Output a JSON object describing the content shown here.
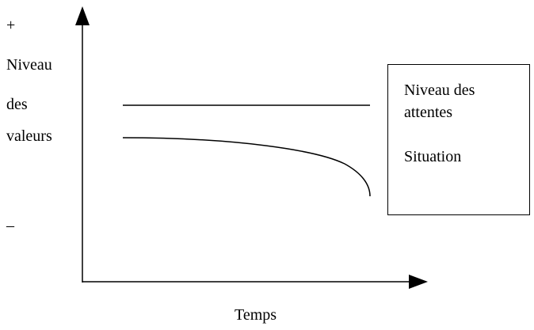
{
  "diagram": {
    "y_axis": {
      "top_marker": "+",
      "label_lines": [
        "Niveau",
        "des",
        "valeurs"
      ],
      "bottom_marker": "–"
    },
    "x_axis": {
      "label": "Temps"
    },
    "legend": {
      "line1": "Niveau des",
      "line2": "attentes",
      "line3": "Situation"
    },
    "colors": {
      "stroke": "#000000",
      "background": "#ffffff"
    }
  }
}
